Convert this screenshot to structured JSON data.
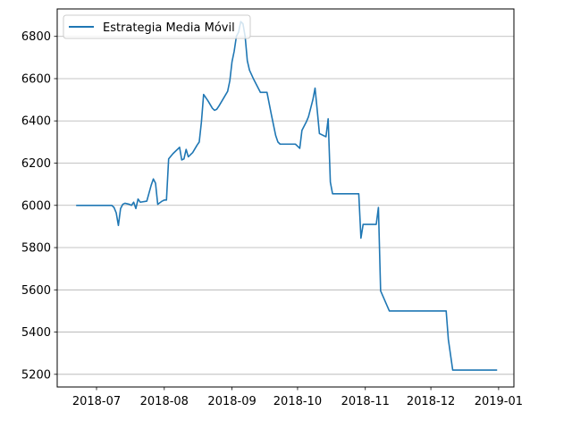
{
  "chart_data": {
    "type": "line",
    "title": "",
    "xlabel": "",
    "ylabel": "",
    "xlim": [
      "2018-06-13",
      "2019-01-08"
    ],
    "ylim": [
      5140,
      6930
    ],
    "grid": {
      "y": true,
      "x": false
    },
    "legend_placement": "top-left",
    "x_ticks": [
      "2018-07",
      "2018-08",
      "2018-09",
      "2018-10",
      "2018-11",
      "2018-12",
      "2019-01"
    ],
    "x_tick_dates": [
      "2018-07-01",
      "2018-08-01",
      "2018-09-01",
      "2018-10-01",
      "2018-11-01",
      "2018-12-01",
      "2019-01-01"
    ],
    "y_ticks": [
      5200,
      5400,
      5600,
      5800,
      6000,
      6200,
      6400,
      6600,
      6800
    ],
    "series": [
      {
        "name": "Estrategia Media Móvil",
        "color": "#1f77b4",
        "points": [
          [
            "2018-06-22",
            6000
          ],
          [
            "2018-07-08",
            6000
          ],
          [
            "2018-07-09",
            5990
          ],
          [
            "2018-07-10",
            5965
          ],
          [
            "2018-07-11",
            5905
          ],
          [
            "2018-07-12",
            5985
          ],
          [
            "2018-07-13",
            6005
          ],
          [
            "2018-07-14",
            6010
          ],
          [
            "2018-07-16",
            6005
          ],
          [
            "2018-07-17",
            6000
          ],
          [
            "2018-07-18",
            6015
          ],
          [
            "2018-07-19",
            5985
          ],
          [
            "2018-07-20",
            6030
          ],
          [
            "2018-07-21",
            6015
          ],
          [
            "2018-07-24",
            6020
          ],
          [
            "2018-07-26",
            6095
          ],
          [
            "2018-07-27",
            6125
          ],
          [
            "2018-07-28",
            6105
          ],
          [
            "2018-07-29",
            6005
          ],
          [
            "2018-07-31",
            6020
          ],
          [
            "2018-08-01",
            6025
          ],
          [
            "2018-08-02",
            6025
          ],
          [
            "2018-08-03",
            6220
          ],
          [
            "2018-08-05",
            6245
          ],
          [
            "2018-08-08",
            6275
          ],
          [
            "2018-08-09",
            6215
          ],
          [
            "2018-08-10",
            6220
          ],
          [
            "2018-08-11",
            6265
          ],
          [
            "2018-08-12",
            6230
          ],
          [
            "2018-08-14",
            6250
          ],
          [
            "2018-08-16",
            6285
          ],
          [
            "2018-08-17",
            6300
          ],
          [
            "2018-08-18",
            6395
          ],
          [
            "2018-08-19",
            6525
          ],
          [
            "2018-08-21",
            6495
          ],
          [
            "2018-08-23",
            6460
          ],
          [
            "2018-08-24",
            6450
          ],
          [
            "2018-08-25",
            6455
          ],
          [
            "2018-08-26",
            6470
          ],
          [
            "2018-08-28",
            6505
          ],
          [
            "2018-08-30",
            6540
          ],
          [
            "2018-08-31",
            6590
          ],
          [
            "2018-09-01",
            6680
          ],
          [
            "2018-09-02",
            6730
          ],
          [
            "2018-09-03",
            6800
          ],
          [
            "2018-09-04",
            6820
          ],
          [
            "2018-09-05",
            6870
          ],
          [
            "2018-09-06",
            6860
          ],
          [
            "2018-09-07",
            6800
          ],
          [
            "2018-09-08",
            6685
          ],
          [
            "2018-09-09",
            6640
          ],
          [
            "2018-09-11",
            6595
          ],
          [
            "2018-09-13",
            6555
          ],
          [
            "2018-09-14",
            6535
          ],
          [
            "2018-09-17",
            6535
          ],
          [
            "2018-09-19",
            6430
          ],
          [
            "2018-09-21",
            6330
          ],
          [
            "2018-09-22",
            6300
          ],
          [
            "2018-09-23",
            6290
          ],
          [
            "2018-09-25",
            6290
          ],
          [
            "2018-09-26",
            6290
          ],
          [
            "2018-09-27",
            6290
          ],
          [
            "2018-09-28",
            6290
          ],
          [
            "2018-09-29",
            6290
          ],
          [
            "2018-09-30",
            6290
          ],
          [
            "2018-10-01",
            6280
          ],
          [
            "2018-10-02",
            6270
          ],
          [
            "2018-10-03",
            6355
          ],
          [
            "2018-10-04",
            6375
          ],
          [
            "2018-10-05",
            6395
          ],
          [
            "2018-10-06",
            6420
          ],
          [
            "2018-10-07",
            6460
          ],
          [
            "2018-10-08",
            6500
          ],
          [
            "2018-10-09",
            6555
          ],
          [
            "2018-10-10",
            6450
          ],
          [
            "2018-10-11",
            6340
          ],
          [
            "2018-10-14",
            6325
          ],
          [
            "2018-10-15",
            6410
          ],
          [
            "2018-10-16",
            6110
          ],
          [
            "2018-10-17",
            6055
          ],
          [
            "2018-10-29",
            6055
          ],
          [
            "2018-10-30",
            5845
          ],
          [
            "2018-10-31",
            5910
          ],
          [
            "2018-11-06",
            5910
          ],
          [
            "2018-11-07",
            5990
          ],
          [
            "2018-11-08",
            5595
          ],
          [
            "2018-11-12",
            5500
          ],
          [
            "2018-12-08",
            5500
          ],
          [
            "2018-12-09",
            5365
          ],
          [
            "2018-12-11",
            5220
          ],
          [
            "2018-12-31",
            5220
          ]
        ]
      }
    ]
  }
}
